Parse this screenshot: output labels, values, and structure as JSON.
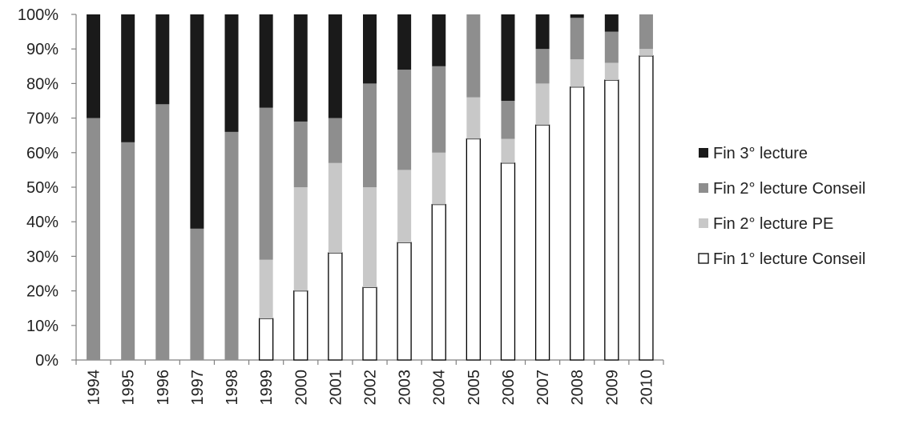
{
  "chart_data": {
    "type": "stacked-bar-100",
    "title": "",
    "xlabel": "",
    "ylabel": "",
    "ylim": [
      0,
      100
    ],
    "y_ticks": [
      "0%",
      "10%",
      "20%",
      "30%",
      "40%",
      "50%",
      "60%",
      "70%",
      "80%",
      "90%",
      "100%"
    ],
    "grid": false,
    "legend_position": "right",
    "categories": [
      "1994",
      "1995",
      "1996",
      "1997",
      "1998",
      "1999",
      "2000",
      "2001",
      "2002",
      "2003",
      "2004",
      "2005",
      "2006",
      "2007",
      "2008",
      "2009",
      "2010"
    ],
    "series": [
      {
        "name": "Fin 1° lecture Conseil",
        "color": "#ffffff",
        "values": [
          0,
          0,
          0,
          0,
          0,
          12,
          20,
          31,
          21,
          34,
          45,
          64,
          57,
          68,
          79,
          81,
          88
        ]
      },
      {
        "name": "Fin 2° lecture PE",
        "color": "#c8c8c8",
        "values": [
          0,
          0,
          0,
          0,
          0,
          17,
          30,
          26,
          29,
          21,
          15,
          12,
          7,
          12,
          8,
          5,
          2
        ]
      },
      {
        "name": "Fin 2° lecture Conseil",
        "color": "#8e8e8e",
        "values": [
          70,
          63,
          74,
          38,
          66,
          44,
          19,
          13,
          30,
          29,
          25,
          24,
          11,
          10,
          12,
          9,
          10
        ]
      },
      {
        "name": "Fin 3° lecture",
        "color": "#1a1a1a",
        "values": [
          30,
          37,
          26,
          62,
          34,
          27,
          31,
          30,
          20,
          16,
          15,
          0,
          25,
          10,
          1,
          5,
          0
        ]
      }
    ],
    "legend_order": [
      "Fin 3° lecture",
      "Fin 2° lecture Conseil",
      "Fin 2° lecture PE",
      "Fin 1° lecture Conseil"
    ]
  }
}
